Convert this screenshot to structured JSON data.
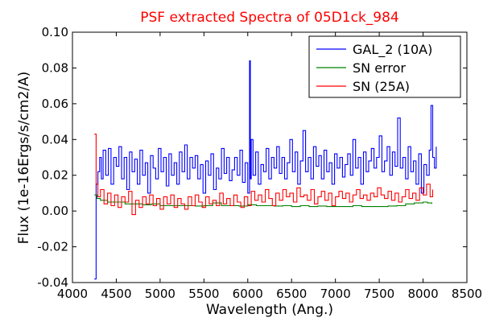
{
  "chart_data": {
    "type": "line",
    "title": "PSF extracted Spectra of 05D1ck_984",
    "xlabel": "Wavelength (Ang.)",
    "ylabel": "Flux (1e-16Ergs/s/cm2/A)",
    "xlim": [
      4000,
      8500
    ],
    "ylim": [
      -0.04,
      0.1
    ],
    "xticks": [
      4000,
      4500,
      5000,
      5500,
      6000,
      6500,
      7000,
      7500,
      8000,
      8500
    ],
    "yticks": [
      -0.04,
      -0.02,
      0.0,
      0.02,
      0.04,
      0.06,
      0.08,
      0.1
    ],
    "ytick_labels": [
      "-0.04",
      "-0.02",
      "0.00",
      "0.02",
      "0.04",
      "0.06",
      "0.08",
      "0.10"
    ],
    "legend_position": "top-right",
    "grid": false,
    "series": [
      {
        "name": "GAL_2 (10A)",
        "color": "#0000ff",
        "step": true,
        "x": [
          4250,
          4270,
          4290,
          4310,
          4330,
          4350,
          4380,
          4410,
          4440,
          4470,
          4500,
          4530,
          4560,
          4590,
          4620,
          4650,
          4680,
          4710,
          4740,
          4770,
          4800,
          4830,
          4860,
          4890,
          4920,
          4950,
          4980,
          5010,
          5040,
          5070,
          5100,
          5130,
          5160,
          5190,
          5220,
          5250,
          5280,
          5310,
          5340,
          5370,
          5400,
          5430,
          5460,
          5490,
          5520,
          5550,
          5580,
          5610,
          5640,
          5670,
          5700,
          5730,
          5760,
          5790,
          5820,
          5850,
          5880,
          5910,
          5940,
          5970,
          6000,
          6020,
          6030,
          6040,
          6060,
          6090,
          6120,
          6150,
          6180,
          6210,
          6240,
          6270,
          6300,
          6330,
          6360,
          6390,
          6420,
          6450,
          6480,
          6510,
          6540,
          6570,
          6600,
          6630,
          6660,
          6690,
          6720,
          6750,
          6780,
          6810,
          6840,
          6870,
          6900,
          6930,
          6960,
          6990,
          7020,
          7050,
          7080,
          7110,
          7140,
          7170,
          7200,
          7230,
          7260,
          7290,
          7320,
          7350,
          7380,
          7410,
          7440,
          7470,
          7500,
          7530,
          7560,
          7590,
          7620,
          7650,
          7680,
          7710,
          7740,
          7770,
          7800,
          7830,
          7860,
          7890,
          7920,
          7950,
          7980,
          8010,
          8040,
          8070,
          8090,
          8110,
          8130,
          8150
        ],
        "y": [
          -0.038,
          0.015,
          0.022,
          0.03,
          0.018,
          0.034,
          0.02,
          0.035,
          0.015,
          0.03,
          0.025,
          0.036,
          0.018,
          0.03,
          0.012,
          0.033,
          0.022,
          0.029,
          0.015,
          0.034,
          0.02,
          0.027,
          0.01,
          0.031,
          0.024,
          0.018,
          0.035,
          0.022,
          0.03,
          0.014,
          0.032,
          0.02,
          0.027,
          0.015,
          0.033,
          0.022,
          0.037,
          0.018,
          0.03,
          0.024,
          0.031,
          0.018,
          0.026,
          0.01,
          0.028,
          0.02,
          0.032,
          0.012,
          0.024,
          0.018,
          0.035,
          0.021,
          0.03,
          0.017,
          0.023,
          0.03,
          0.02,
          0.034,
          0.016,
          0.027,
          0.01,
          0.084,
          0.018,
          0.04,
          0.02,
          0.033,
          0.015,
          0.026,
          0.022,
          0.035,
          0.018,
          0.03,
          0.024,
          0.036,
          0.021,
          0.03,
          0.018,
          0.027,
          0.04,
          0.022,
          0.033,
          0.015,
          0.028,
          0.045,
          0.022,
          0.03,
          0.018,
          0.036,
          0.025,
          0.031,
          0.018,
          0.034,
          0.022,
          0.027,
          0.015,
          0.032,
          0.024,
          0.03,
          0.019,
          0.026,
          0.032,
          0.02,
          0.04,
          0.024,
          0.03,
          0.015,
          0.033,
          0.022,
          0.028,
          0.035,
          0.024,
          0.03,
          0.042,
          0.022,
          0.028,
          0.036,
          0.02,
          0.033,
          0.025,
          0.052,
          0.024,
          0.03,
          0.018,
          0.036,
          0.022,
          0.028,
          0.015,
          0.032,
          0.01,
          0.026,
          0.02,
          0.034,
          0.059,
          0.03,
          0.024,
          0.036
        ]
      },
      {
        "name": "SN error",
        "color": "#008000",
        "step": true,
        "x": [
          4250,
          4280,
          4320,
          4400,
          4500,
          4600,
          4700,
          4800,
          4900,
          5000,
          5100,
          5200,
          5300,
          5400,
          5500,
          5600,
          5700,
          5800,
          5900,
          6000,
          6100,
          6200,
          6300,
          6400,
          6500,
          6600,
          6700,
          6800,
          6900,
          7000,
          7100,
          7200,
          7300,
          7400,
          7500,
          7600,
          7700,
          7800,
          7900,
          8000,
          8050,
          8100
        ],
        "y": [
          0.009,
          0.007,
          0.006,
          0.005,
          0.005,
          0.004,
          0.004,
          0.0035,
          0.004,
          0.003,
          0.003,
          0.003,
          0.003,
          0.0028,
          0.003,
          0.0045,
          0.003,
          0.003,
          0.0028,
          0.0035,
          0.003,
          0.003,
          0.0028,
          0.003,
          0.0025,
          0.003,
          0.0025,
          0.0028,
          0.0025,
          0.0025,
          0.0025,
          0.003,
          0.0025,
          0.0025,
          0.0025,
          0.0028,
          0.003,
          0.004,
          0.0045,
          0.005,
          0.0045,
          0.004
        ]
      },
      {
        "name": "SN (25A)",
        "color": "#ff0000",
        "step": true,
        "x": [
          4250,
          4270,
          4290,
          4320,
          4360,
          4400,
          4440,
          4480,
          4520,
          4560,
          4600,
          4640,
          4680,
          4720,
          4760,
          4800,
          4840,
          4880,
          4920,
          4960,
          5000,
          5040,
          5080,
          5120,
          5160,
          5200,
          5240,
          5280,
          5320,
          5360,
          5400,
          5440,
          5480,
          5520,
          5560,
          5600,
          5640,
          5680,
          5720,
          5760,
          5800,
          5840,
          5880,
          5920,
          5960,
          6000,
          6040,
          6080,
          6120,
          6160,
          6200,
          6240,
          6280,
          6320,
          6360,
          6400,
          6440,
          6480,
          6520,
          6560,
          6600,
          6640,
          6680,
          6720,
          6760,
          6800,
          6840,
          6880,
          6920,
          6960,
          7000,
          7040,
          7080,
          7120,
          7160,
          7200,
          7240,
          7280,
          7320,
          7360,
          7400,
          7440,
          7480,
          7520,
          7560,
          7600,
          7640,
          7680,
          7720,
          7760,
          7800,
          7840,
          7880,
          7920,
          7960,
          8000,
          8040,
          8080,
          8110
        ],
        "y": [
          0.043,
          0.015,
          0.008,
          0.012,
          0.004,
          0.01,
          0.003,
          0.009,
          0.002,
          0.008,
          0.005,
          0.011,
          -0.002,
          0.006,
          0.002,
          0.008,
          0.004,
          0.009,
          0.003,
          0.007,
          0.001,
          0.008,
          0.004,
          0.009,
          0.002,
          0.007,
          0.004,
          0.001,
          0.008,
          0.003,
          0.009,
          0.005,
          0.002,
          0.008,
          0.004,
          0.006,
          0.003,
          0.01,
          0.004,
          0.007,
          0.003,
          0.009,
          0.005,
          0.002,
          0.008,
          0.003,
          0.011,
          0.006,
          0.009,
          0.005,
          0.012,
          0.007,
          0.003,
          0.01,
          0.006,
          0.012,
          0.008,
          0.01,
          0.005,
          0.013,
          0.008,
          0.009,
          0.006,
          0.012,
          0.004,
          0.008,
          0.011,
          0.006,
          0.01,
          0.003,
          0.008,
          0.011,
          0.007,
          0.01,
          0.005,
          0.009,
          0.012,
          0.007,
          0.009,
          0.006,
          0.01,
          0.008,
          0.013,
          0.009,
          0.007,
          0.011,
          0.006,
          0.01,
          0.005,
          0.008,
          0.012,
          0.007,
          0.01,
          0.006,
          0.013,
          0.009,
          0.015,
          0.008,
          0.012
        ]
      }
    ]
  }
}
